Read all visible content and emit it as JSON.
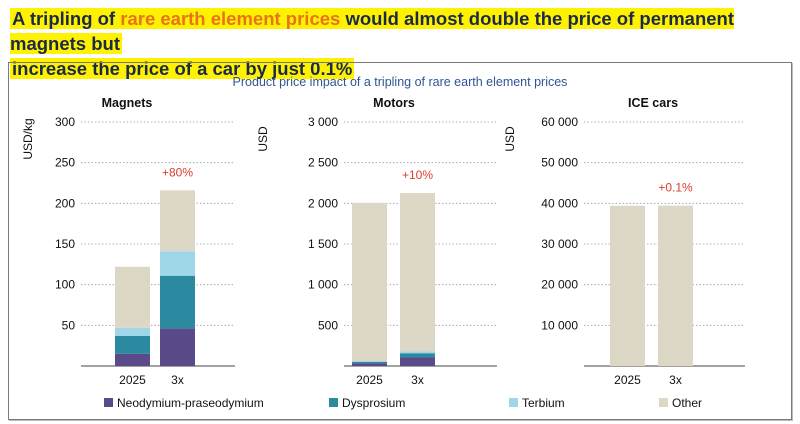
{
  "headline": {
    "line1_pre": "A tripling of ",
    "line1_accent": "rare earth element prices",
    "line1_post": " would almost double the price of permanent magnets but",
    "line2": "increase the price of a car by just 0.1%"
  },
  "colors": {
    "highlight": "#fff200",
    "accent": "#e8731a",
    "subtitle": "#2f5597",
    "change_label": "#e03a2f",
    "Neodymium-praseodymium": "#5b4a8a",
    "Dysprosium": "#2b8aa0",
    "Terbium": "#9fd6e8",
    "Other": "#ddd8c6"
  },
  "subtitle": "Product price impact of a tripling of rare earth element prices",
  "legend": [
    "Neodymium-praseodymium",
    "Dysprosium",
    "Terbium",
    "Other"
  ],
  "chart_data": [
    {
      "type": "bar",
      "stacked": true,
      "title": "Magnets",
      "ylabel": "USD/kg",
      "ylim": [
        0,
        300
      ],
      "yticks": [
        50,
        100,
        150,
        200,
        250,
        300
      ],
      "ytick_labels": [
        "50",
        "100",
        "150",
        "200",
        "250",
        "300"
      ],
      "grid": true,
      "categories": [
        "2025",
        "3x"
      ],
      "series": [
        {
          "name": "Neodymium-praseodymium",
          "values": [
            15,
            46
          ]
        },
        {
          "name": "Dysprosium",
          "values": [
            22,
            65
          ]
        },
        {
          "name": "Terbium",
          "values": [
            10,
            30
          ]
        },
        {
          "name": "Other",
          "values": [
            75,
            75
          ]
        }
      ],
      "annotation": "+80%"
    },
    {
      "type": "bar",
      "stacked": true,
      "title": "Motors",
      "ylabel": "USD",
      "ylim": [
        0,
        3000
      ],
      "yticks": [
        500,
        1000,
        1500,
        2000,
        2500,
        3000
      ],
      "ytick_labels": [
        "500",
        "1 000",
        "1 500",
        "2 000",
        "2 500",
        "3 000"
      ],
      "grid": true,
      "categories": [
        "2025",
        "3x"
      ],
      "series": [
        {
          "name": "Neodymium-praseodymium",
          "values": [
            35,
            105
          ]
        },
        {
          "name": "Dysprosium",
          "values": [
            17,
            52
          ]
        },
        {
          "name": "Terbium",
          "values": [
            8,
            25
          ]
        },
        {
          "name": "Other",
          "values": [
            1945,
            1945
          ]
        }
      ],
      "annotation": "+10%"
    },
    {
      "type": "bar",
      "stacked": true,
      "title": "ICE cars",
      "ylabel": "USD",
      "ylim": [
        0,
        60000
      ],
      "yticks": [
        10000,
        20000,
        30000,
        40000,
        50000,
        60000
      ],
      "ytick_labels": [
        "10 000",
        "20 000",
        "30 000",
        "40 000",
        "50 000",
        "60 000"
      ],
      "grid": true,
      "categories": [
        "2025",
        "3x"
      ],
      "series": [
        {
          "name": "Neodymium-praseodymium",
          "values": [
            0,
            0
          ]
        },
        {
          "name": "Dysprosium",
          "values": [
            0,
            0
          ]
        },
        {
          "name": "Terbium",
          "values": [
            0,
            0
          ]
        },
        {
          "name": "Other",
          "values": [
            39400,
            39440
          ]
        }
      ],
      "annotation": "+0.1%"
    }
  ]
}
